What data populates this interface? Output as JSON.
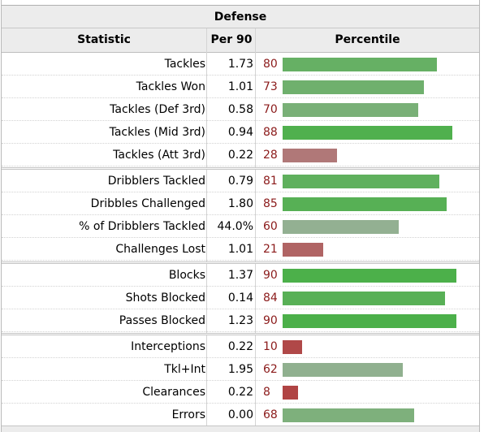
{
  "table": {
    "title": "Defense",
    "headers": {
      "statistic": "Statistic",
      "per90": "Per 90",
      "percentile": "Percentile"
    },
    "rows": [
      {
        "stat": "Tackles",
        "per90": "1.73",
        "pct": "80",
        "percentile": 80,
        "color": "#66b064"
      },
      {
        "stat": "Tackles Won",
        "per90": "1.01",
        "pct": "73",
        "percentile": 73,
        "color": "#6fb06d"
      },
      {
        "stat": "Tackles (Def 3rd)",
        "per90": "0.58",
        "pct": "70",
        "percentile": 70,
        "color": "#79b077"
      },
      {
        "stat": "Tackles (Mid 3rd)",
        "per90": "0.94",
        "pct": "88",
        "percentile": 88,
        "color": "#50b04e"
      },
      {
        "stat": "Tackles (Att 3rd)",
        "per90": "0.22",
        "pct": "28",
        "percentile": 28,
        "color": "#b07878"
      },
      {
        "stat": "Dribblers Tackled",
        "per90": "0.79",
        "pct": "81",
        "percentile": 81,
        "color": "#5fb05d"
      },
      {
        "stat": "Dribbles Challenged",
        "per90": "1.80",
        "pct": "85",
        "percentile": 85,
        "color": "#57b055"
      },
      {
        "stat": "% of Dribblers Tackled",
        "per90": "44.0%",
        "pct": "60",
        "percentile": 60,
        "color": "#93b092"
      },
      {
        "stat": "Challenges Lost",
        "per90": "1.01",
        "pct": "21",
        "percentile": 21,
        "color": "#b06464"
      },
      {
        "stat": "Blocks",
        "per90": "1.37",
        "pct": "90",
        "percentile": 90,
        "color": "#4cb04a"
      },
      {
        "stat": "Shots Blocked",
        "per90": "0.14",
        "pct": "84",
        "percentile": 84,
        "color": "#58b056"
      },
      {
        "stat": "Passes Blocked",
        "per90": "1.23",
        "pct": "90",
        "percentile": 90,
        "color": "#4cb04a"
      },
      {
        "stat": "Interceptions",
        "per90": "0.22",
        "pct": "10",
        "percentile": 10,
        "color": "#b04848"
      },
      {
        "stat": "Tkl+Int",
        "per90": "1.95",
        "pct": "62",
        "percentile": 62,
        "color": "#90b08f"
      },
      {
        "stat": "Clearances",
        "per90": "0.22",
        "pct": "8",
        "percentile": 8,
        "color": "#b04444"
      },
      {
        "stat": "Errors",
        "per90": "0.00",
        "pct": "68",
        "percentile": 68,
        "color": "#7eb07c"
      }
    ]
  }
}
